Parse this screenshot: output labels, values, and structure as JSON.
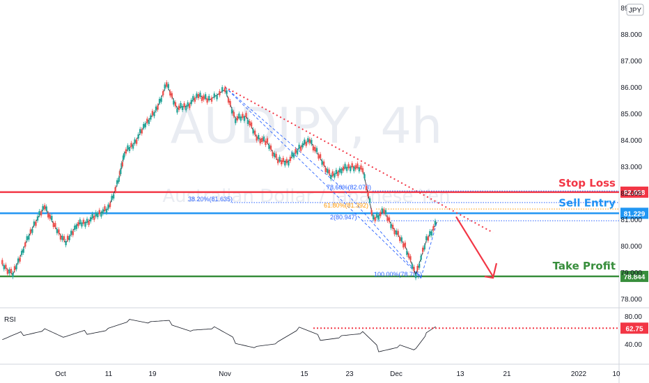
{
  "currency_badge": "JPY",
  "chart_data": {
    "type": "candlestick",
    "symbol": "AUDJPY",
    "timeframe": "4h",
    "watermark": {
      "symbol": "AUDJPY, 4h",
      "name": "Australian Dollar / Japanese Yen"
    },
    "price_axis": {
      "ticks": [
        "89.000",
        "88.000",
        "87.000",
        "86.000",
        "85.000",
        "84.000",
        "83.000",
        "82.000",
        "81.000",
        "80.000",
        "79.000",
        "78.000"
      ],
      "range": [
        77.6,
        89.1
      ]
    },
    "time_axis": {
      "ticks": [
        "Oct",
        "11",
        "19",
        "Nov",
        "15",
        "23",
        "Dec",
        "13",
        "21",
        "2022",
        "10"
      ]
    },
    "close_path": [
      {
        "d": "2021-09-20",
        "v": 79.3
      },
      {
        "d": "2021-09-22",
        "v": 78.9
      },
      {
        "d": "2021-09-24",
        "v": 79.9
      },
      {
        "d": "2021-09-26",
        "v": 80.8
      },
      {
        "d": "2021-09-28",
        "v": 81.5
      },
      {
        "d": "2021-09-30",
        "v": 80.7
      },
      {
        "d": "2021-10-02",
        "v": 80.1
      },
      {
        "d": "2021-10-04",
        "v": 80.8
      },
      {
        "d": "2021-10-06",
        "v": 80.9
      },
      {
        "d": "2021-10-08",
        "v": 81.2
      },
      {
        "d": "2021-10-10",
        "v": 81.4
      },
      {
        "d": "2021-10-12",
        "v": 82.5
      },
      {
        "d": "2021-10-13",
        "v": 83.5
      },
      {
        "d": "2021-10-15",
        "v": 83.9
      },
      {
        "d": "2021-10-17",
        "v": 84.6
      },
      {
        "d": "2021-10-19",
        "v": 85.1
      },
      {
        "d": "2021-10-21",
        "v": 86.1
      },
      {
        "d": "2021-10-23",
        "v": 85.2
      },
      {
        "d": "2021-10-25",
        "v": 85.3
      },
      {
        "d": "2021-10-27",
        "v": 85.7
      },
      {
        "d": "2021-10-29",
        "v": 85.5
      },
      {
        "d": "2021-11-01",
        "v": 85.9
      },
      {
        "d": "2021-11-03",
        "v": 84.8
      },
      {
        "d": "2021-11-05",
        "v": 84.9
      },
      {
        "d": "2021-11-07",
        "v": 84.1
      },
      {
        "d": "2021-11-09",
        "v": 83.9
      },
      {
        "d": "2021-11-11",
        "v": 83.2
      },
      {
        "d": "2021-11-13",
        "v": 83.2
      },
      {
        "d": "2021-11-15",
        "v": 83.7
      },
      {
        "d": "2021-11-17",
        "v": 84.0
      },
      {
        "d": "2021-11-19",
        "v": 83.3
      },
      {
        "d": "2021-11-21",
        "v": 82.6
      },
      {
        "d": "2021-11-23",
        "v": 82.9
      },
      {
        "d": "2021-11-25",
        "v": 83.0
      },
      {
        "d": "2021-11-27",
        "v": 82.9
      },
      {
        "d": "2021-11-29",
        "v": 81.0
      },
      {
        "d": "2021-12-01",
        "v": 81.3
      },
      {
        "d": "2021-12-03",
        "v": 80.6
      },
      {
        "d": "2021-12-05",
        "v": 80.0
      },
      {
        "d": "2021-12-07",
        "v": 78.9
      },
      {
        "d": "2021-12-09",
        "v": 80.2
      },
      {
        "d": "2021-12-11",
        "v": 80.9
      }
    ],
    "rsi": {
      "label": "RSI",
      "ticks": [
        "80.00",
        "40.00"
      ],
      "level": "62.75",
      "path": [
        {
          "d": "2021-09-20",
          "v": 42
        },
        {
          "d": "2021-09-24",
          "v": 55
        },
        {
          "d": "2021-09-28",
          "v": 62
        },
        {
          "d": "2021-10-02",
          "v": 48
        },
        {
          "d": "2021-10-06",
          "v": 58
        },
        {
          "d": "2021-10-10",
          "v": 64
        },
        {
          "d": "2021-10-14",
          "v": 74
        },
        {
          "d": "2021-10-18",
          "v": 68
        },
        {
          "d": "2021-10-22",
          "v": 70
        },
        {
          "d": "2021-10-26",
          "v": 60
        },
        {
          "d": "2021-10-30",
          "v": 62
        },
        {
          "d": "2021-11-03",
          "v": 45
        },
        {
          "d": "2021-11-07",
          "v": 38
        },
        {
          "d": "2021-11-11",
          "v": 42
        },
        {
          "d": "2021-11-15",
          "v": 60
        },
        {
          "d": "2021-11-19",
          "v": 48
        },
        {
          "d": "2021-11-23",
          "v": 52
        },
        {
          "d": "2021-11-27",
          "v": 55
        },
        {
          "d": "2021-11-30",
          "v": 33
        },
        {
          "d": "2021-12-04",
          "v": 40
        },
        {
          "d": "2021-12-07",
          "v": 32
        },
        {
          "d": "2021-12-09",
          "v": 52
        },
        {
          "d": "2021-12-11",
          "v": 62
        }
      ]
    },
    "levels": [
      {
        "name": "Stop Loss",
        "value": 82.028,
        "tag": "82.028",
        "color": "#f23645"
      },
      {
        "name": "Sell Entry",
        "value": 81.229,
        "tag": "81.229",
        "color": "#2196f3"
      },
      {
        "name": "Take Profit",
        "value": 78.844,
        "tag": "78.844",
        "color": "#388e3c"
      }
    ],
    "fib_labels": [
      {
        "text": "78.60%(82.073)",
        "value": 82.073,
        "color": "#2962ff"
      },
      {
        "text": "38.20%(81.635)",
        "value": 81.635,
        "color": "#2962ff"
      },
      {
        "text": "61.80%(81.392)",
        "value": 81.392,
        "color": "#ff9800"
      },
      {
        "text": "2(80.947)",
        "value": 80.947,
        "color": "#2962ff"
      },
      {
        "text": "100.00%(78.785)",
        "value": 78.785,
        "color": "#2962ff"
      }
    ],
    "grid": false
  }
}
